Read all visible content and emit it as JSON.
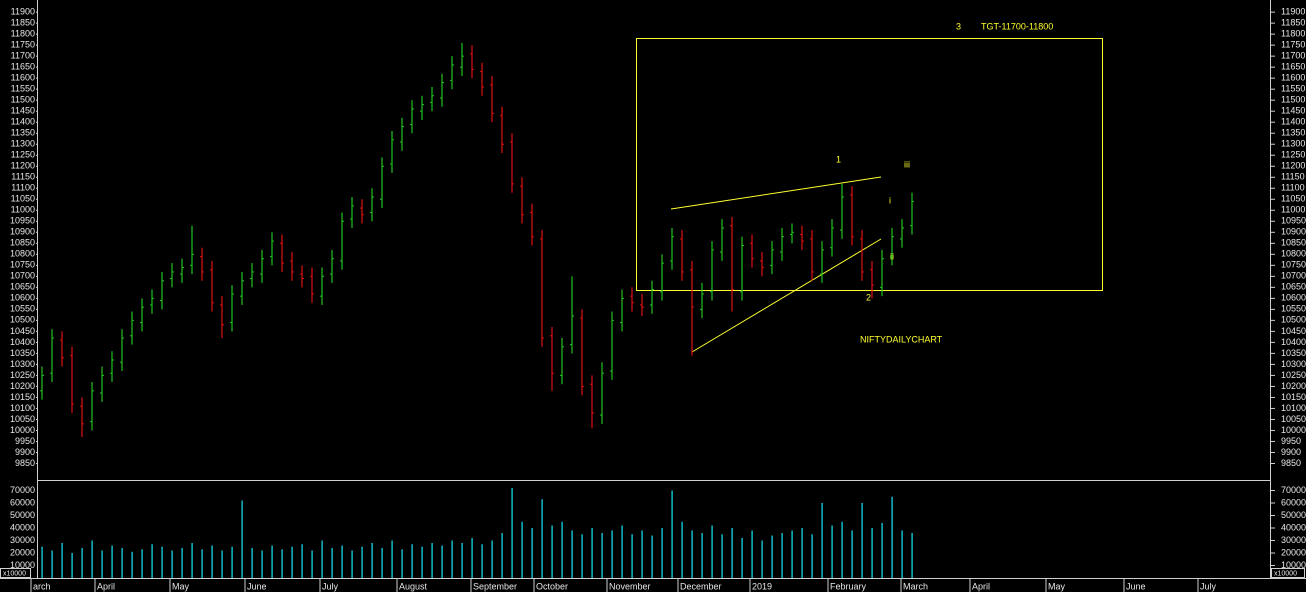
{
  "chart_data": {
    "type": "ohlc",
    "up_color": "#22c322",
    "down_color": "#e01010",
    "ylim": [
      9775,
      11955
    ],
    "yticks": [
      9850,
      9900,
      9950,
      10000,
      10050,
      10100,
      10150,
      10200,
      10250,
      10300,
      10350,
      10400,
      10450,
      10500,
      10550,
      10600,
      10650,
      10700,
      10750,
      10800,
      10850,
      10900,
      10950,
      11000,
      11050,
      11100,
      11150,
      11200,
      11250,
      11300,
      11350,
      11400,
      11450,
      11500,
      11550,
      11600,
      11650,
      11700,
      11750,
      11800,
      11850,
      11900
    ],
    "open": [
      10180,
      10260,
      10410,
      10340,
      10110,
      10040,
      10170,
      10260,
      10310,
      10430,
      10490,
      10570,
      10590,
      10690,
      10710,
      10750,
      10790,
      10730,
      10570,
      10490,
      10610,
      10690,
      10710,
      10790,
      10850,
      10770,
      10710,
      10700,
      10610,
      10710,
      10770,
      10960,
      11010,
      10990,
      11050,
      11210,
      11310,
      11390,
      11450,
      11490,
      11510,
      11590,
      11650,
      11710,
      11630,
      11570,
      11430,
      11310,
      11110,
      10990,
      10870,
      10430,
      10250,
      10390,
      10510,
      10210,
      10070,
      10270,
      10490,
      10610,
      10570,
      10570,
      10630,
      10770,
      10870,
      10730,
      10550,
      10630,
      10810,
      10930,
      10630,
      10850,
      10770,
      10750,
      10810,
      10890,
      10890,
      10870,
      10710,
      10830,
      10910,
      11070,
      10870,
      10730,
      10650,
      10790,
      10870,
      10930
    ],
    "high": [
      10290,
      10460,
      10450,
      10380,
      10150,
      10220,
      10290,
      10360,
      10460,
      10540,
      10600,
      10640,
      10720,
      10760,
      10780,
      10930,
      10830,
      10770,
      10610,
      10660,
      10720,
      10760,
      10820,
      10900,
      10890,
      10810,
      10750,
      10740,
      10740,
      10820,
      10990,
      11060,
      11050,
      11100,
      11240,
      11360,
      11420,
      11500,
      11520,
      11560,
      11620,
      11700,
      11760,
      11750,
      11670,
      11610,
      11470,
      11350,
      11150,
      11030,
      10910,
      10470,
      10420,
      10700,
      10550,
      10250,
      10310,
      10540,
      10640,
      10650,
      10620,
      10680,
      10800,
      10920,
      10910,
      10770,
      10670,
      10860,
      10960,
      10970,
      10880,
      10890,
      10810,
      10860,
      10920,
      10940,
      10930,
      10910,
      10860,
      10960,
      11120,
      11110,
      10910,
      10770,
      10820,
      10920,
      10960,
      11080
    ],
    "low": [
      10140,
      10220,
      10290,
      10080,
      9970,
      10000,
      10130,
      10220,
      10270,
      10390,
      10450,
      10530,
      10550,
      10650,
      10670,
      10710,
      10680,
      10540,
      10420,
      10450,
      10570,
      10650,
      10670,
      10750,
      10720,
      10680,
      10650,
      10580,
      10570,
      10670,
      10730,
      10920,
      10940,
      10950,
      11010,
      11170,
      11270,
      11350,
      11410,
      11450,
      11470,
      11550,
      11610,
      11600,
      11520,
      11400,
      11260,
      11080,
      10940,
      10840,
      10380,
      10180,
      10210,
      10350,
      10160,
      10010,
      10030,
      10230,
      10450,
      10540,
      10520,
      10530,
      10590,
      10730,
      10680,
      10340,
      10510,
      10590,
      10770,
      10540,
      10590,
      10740,
      10700,
      10710,
      10770,
      10850,
      10820,
      10680,
      10670,
      10790,
      10870,
      10840,
      10680,
      10600,
      10610,
      10750,
      10830,
      10890
    ],
    "close": [
      10250,
      10420,
      10330,
      10120,
      10030,
      10180,
      10250,
      10320,
      10420,
      10500,
      10560,
      10600,
      10680,
      10720,
      10740,
      10800,
      10720,
      10580,
      10480,
      10620,
      10680,
      10720,
      10780,
      10860,
      10760,
      10720,
      10690,
      10620,
      10700,
      10780,
      10950,
      11020,
      10980,
      11060,
      11200,
      11320,
      11380,
      11460,
      11480,
      11520,
      11580,
      11660,
      11700,
      11640,
      11560,
      11440,
      11300,
      11120,
      10980,
      10880,
      10420,
      10260,
      10380,
      10520,
      10200,
      10080,
      10260,
      10500,
      10600,
      10580,
      10560,
      10640,
      10760,
      10880,
      10720,
      10560,
      10620,
      10820,
      10920,
      10640,
      10840,
      10780,
      10740,
      10820,
      10880,
      10900,
      10860,
      10720,
      10820,
      10920,
      11060,
      10880,
      10720,
      10660,
      10780,
      10880,
      10920,
      11040
    ],
    "volume": {
      "color": "#10c8d8",
      "ylim": [
        0,
        75200
      ],
      "yticks": [
        10000,
        20000,
        30000,
        40000,
        50000,
        60000,
        70000
      ],
      "unit_label": "x10000",
      "values": [
        25000,
        22000,
        28000,
        20000,
        24000,
        30000,
        22000,
        26000,
        24000,
        21000,
        23000,
        27000,
        25000,
        22000,
        24000,
        28000,
        23000,
        26000,
        22000,
        25000,
        62000,
        24000,
        22000,
        26000,
        23000,
        25000,
        27000,
        22000,
        30000,
        24000,
        26000,
        22000,
        25000,
        28000,
        24000,
        30000,
        23000,
        27000,
        25000,
        28000,
        26000,
        30000,
        28000,
        32000,
        27000,
        30000,
        36000,
        72000,
        45000,
        40000,
        63000,
        42000,
        45000,
        38000,
        35000,
        40000,
        36000,
        38000,
        42000,
        35000,
        38000,
        34000,
        40000,
        70000,
        45000,
        38000,
        36000,
        42000,
        35000,
        40000,
        32000,
        38000,
        30000,
        34000,
        36000,
        38000,
        40000,
        35000,
        60000,
        42000,
        45000,
        38000,
        60000,
        40000,
        44000,
        65000,
        38000,
        36000
      ]
    },
    "month_labels": [
      "arch",
      "April",
      "May",
      "June",
      "July",
      "August",
      "September",
      "October",
      "November",
      "December",
      "2019",
      "February",
      "March",
      "April",
      "May",
      "June",
      "July"
    ],
    "annotations": {
      "wave_3": "3",
      "target": "TGT-11700-11800",
      "wave_1": "1",
      "wave_iii": "iii",
      "wave_i": "i",
      "wave_ii": "ii",
      "wave_2": "2",
      "chart_name": "NIFTYDAILYCHART"
    }
  }
}
